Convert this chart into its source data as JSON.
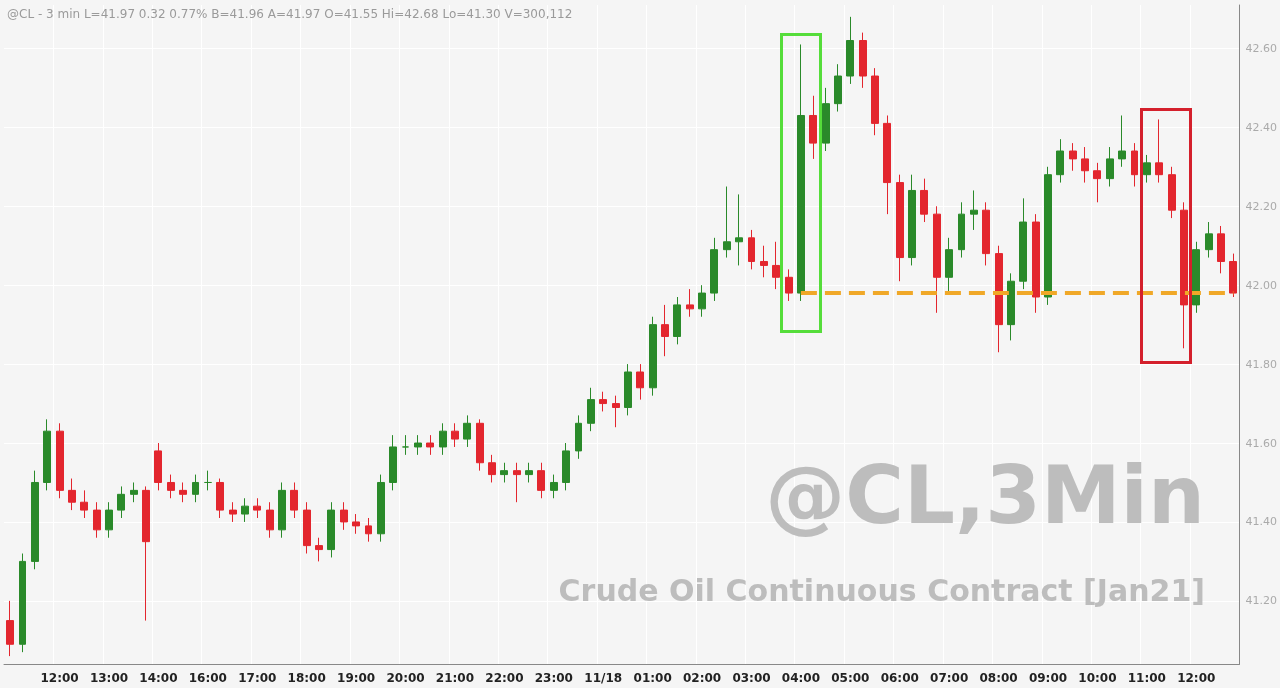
{
  "chart_data": {
    "type": "candlestick",
    "title": "@CL,3Min",
    "subtitle": "Crude Oil Continuous Contract [Jan21]",
    "annotations": [
      "@CL - 3 min L=41.97 0.32 0.77% B=41.96 A=41.97 O=41.55 Hi=42.68 Lo=41.30 V=300,112"
    ],
    "categories": [
      null,
      null,
      null,
      null,
      "12:00",
      null,
      null,
      null,
      "13:00",
      null,
      null,
      null,
      "14:00",
      null,
      null,
      null,
      "16:00",
      null,
      null,
      null,
      "17:00",
      null,
      null,
      null,
      "18:00",
      null,
      null,
      null,
      "19:00",
      null,
      null,
      null,
      "20:00",
      null,
      null,
      null,
      "21:00",
      null,
      null,
      null,
      "22:00",
      null,
      null,
      null,
      "23:00",
      null,
      null,
      null,
      "11/18",
      null,
      null,
      null,
      "01:00",
      null,
      null,
      null,
      "02:00",
      null,
      null,
      null,
      "03:00",
      null,
      null,
      null,
      "04:00",
      null,
      null,
      null,
      "05:00",
      null,
      null,
      null,
      "06:00",
      null,
      null,
      null,
      "07:00",
      null,
      null,
      null,
      "08:00",
      null,
      null,
      null,
      "09:00",
      null,
      null,
      null,
      "10:00",
      null,
      null,
      null,
      "11:00",
      null,
      null,
      null,
      "12:00",
      null,
      null,
      null
    ],
    "ohlc": [
      [
        41.15,
        41.2,
        41.06,
        41.09
      ],
      [
        41.09,
        41.32,
        41.07,
        41.3
      ],
      [
        41.3,
        41.53,
        41.28,
        41.5
      ],
      [
        41.5,
        41.66,
        41.48,
        41.63
      ],
      [
        41.63,
        41.65,
        41.46,
        41.48
      ],
      [
        41.48,
        41.51,
        41.43,
        41.45
      ],
      [
        41.45,
        41.48,
        41.41,
        41.43
      ],
      [
        41.43,
        41.45,
        41.36,
        41.38
      ],
      [
        41.38,
        41.45,
        41.36,
        41.43
      ],
      [
        41.43,
        41.49,
        41.41,
        41.47
      ],
      [
        41.47,
        41.5,
        41.45,
        41.48
      ],
      [
        41.48,
        41.49,
        41.15,
        41.35
      ],
      [
        41.58,
        41.6,
        41.48,
        41.5
      ],
      [
        41.5,
        41.52,
        41.46,
        41.48
      ],
      [
        41.48,
        41.5,
        41.45,
        41.47
      ],
      [
        41.47,
        41.52,
        41.45,
        41.5
      ],
      [
        41.5,
        41.53,
        41.48,
        41.5
      ],
      [
        41.5,
        41.51,
        41.41,
        41.43
      ],
      [
        41.43,
        41.45,
        41.4,
        41.42
      ],
      [
        41.42,
        41.46,
        41.4,
        41.44
      ],
      [
        41.44,
        41.46,
        41.41,
        41.43
      ],
      [
        41.43,
        41.45,
        41.36,
        41.38
      ],
      [
        41.38,
        41.5,
        41.36,
        41.48
      ],
      [
        41.48,
        41.5,
        41.41,
        41.43
      ],
      [
        41.43,
        41.45,
        41.32,
        41.34
      ],
      [
        41.34,
        41.36,
        41.3,
        41.33
      ],
      [
        41.33,
        41.45,
        41.31,
        41.43
      ],
      [
        41.43,
        41.45,
        41.38,
        41.4
      ],
      [
        41.4,
        41.42,
        41.37,
        41.39
      ],
      [
        41.39,
        41.41,
        41.35,
        41.37
      ],
      [
        41.37,
        41.52,
        41.35,
        41.5
      ],
      [
        41.5,
        41.62,
        41.48,
        41.59
      ],
      [
        41.59,
        41.62,
        41.57,
        41.59
      ],
      [
        41.59,
        41.62,
        41.57,
        41.6
      ],
      [
        41.6,
        41.62,
        41.57,
        41.59
      ],
      [
        41.59,
        41.65,
        41.57,
        41.63
      ],
      [
        41.63,
        41.65,
        41.59,
        41.61
      ],
      [
        41.61,
        41.67,
        41.59,
        41.65
      ],
      [
        41.65,
        41.66,
        41.53,
        41.55
      ],
      [
        41.55,
        41.57,
        41.5,
        41.52
      ],
      [
        41.52,
        41.55,
        41.5,
        41.53
      ],
      [
        41.53,
        41.55,
        41.45,
        41.52
      ],
      [
        41.52,
        41.55,
        41.5,
        41.53
      ],
      [
        41.53,
        41.55,
        41.46,
        41.48
      ],
      [
        41.48,
        41.52,
        41.46,
        41.5
      ],
      [
        41.5,
        41.6,
        41.48,
        41.58
      ],
      [
        41.58,
        41.67,
        41.56,
        41.65
      ],
      [
        41.65,
        41.74,
        41.63,
        41.71
      ],
      [
        41.71,
        41.73,
        41.68,
        41.7
      ],
      [
        41.7,
        41.72,
        41.64,
        41.69
      ],
      [
        41.69,
        41.8,
        41.67,
        41.78
      ],
      [
        41.78,
        41.8,
        41.71,
        41.74
      ],
      [
        41.74,
        41.92,
        41.72,
        41.9
      ],
      [
        41.9,
        41.95,
        41.82,
        41.87
      ],
      [
        41.87,
        41.97,
        41.85,
        41.95
      ],
      [
        41.95,
        41.99,
        41.92,
        41.94
      ],
      [
        41.94,
        42.0,
        41.92,
        41.98
      ],
      [
        41.98,
        42.12,
        41.96,
        42.09
      ],
      [
        42.09,
        42.25,
        42.07,
        42.11
      ],
      [
        42.11,
        42.23,
        42.05,
        42.12
      ],
      [
        42.12,
        42.14,
        42.04,
        42.06
      ],
      [
        42.06,
        42.1,
        42.02,
        42.05
      ],
      [
        42.05,
        42.11,
        41.99,
        42.02
      ],
      [
        42.02,
        42.04,
        41.96,
        41.98
      ],
      [
        41.98,
        42.61,
        41.96,
        42.43
      ],
      [
        42.43,
        42.48,
        42.32,
        42.36
      ],
      [
        42.36,
        42.5,
        42.34,
        42.46
      ],
      [
        42.46,
        42.56,
        42.44,
        42.53
      ],
      [
        42.53,
        42.68,
        42.51,
        42.62
      ],
      [
        42.62,
        42.64,
        42.5,
        42.53
      ],
      [
        42.53,
        42.55,
        42.38,
        42.41
      ],
      [
        42.41,
        42.43,
        42.18,
        42.26
      ],
      [
        42.26,
        42.28,
        42.01,
        42.07
      ],
      [
        42.07,
        42.28,
        42.05,
        42.24
      ],
      [
        42.24,
        42.27,
        42.16,
        42.18
      ],
      [
        42.18,
        42.2,
        41.93,
        42.02
      ],
      [
        42.02,
        42.12,
        41.98,
        42.09
      ],
      [
        42.09,
        42.21,
        42.07,
        42.18
      ],
      [
        42.18,
        42.24,
        42.14,
        42.19
      ],
      [
        42.19,
        42.21,
        42.05,
        42.08
      ],
      [
        42.08,
        42.1,
        41.83,
        41.9
      ],
      [
        41.9,
        42.03,
        41.86,
        42.01
      ],
      [
        42.01,
        42.22,
        41.99,
        42.16
      ],
      [
        42.16,
        42.18,
        41.93,
        41.97
      ],
      [
        41.97,
        42.3,
        41.95,
        42.28
      ],
      [
        42.28,
        42.37,
        42.26,
        42.34
      ],
      [
        42.34,
        42.36,
        42.29,
        42.32
      ],
      [
        42.32,
        42.35,
        42.26,
        42.29
      ],
      [
        42.29,
        42.31,
        42.21,
        42.27
      ],
      [
        42.27,
        42.35,
        42.25,
        42.32
      ],
      [
        42.32,
        42.43,
        42.3,
        42.34
      ],
      [
        42.34,
        42.36,
        42.25,
        42.28
      ],
      [
        42.28,
        42.33,
        42.26,
        42.31
      ],
      [
        42.31,
        42.42,
        42.26,
        42.28
      ],
      [
        42.28,
        42.3,
        42.17,
        42.19
      ],
      [
        42.19,
        42.21,
        41.84,
        41.95
      ],
      [
        41.95,
        42.11,
        41.93,
        42.09
      ],
      [
        42.09,
        42.16,
        42.07,
        42.13
      ],
      [
        42.13,
        42.15,
        42.03,
        42.06
      ],
      [
        42.06,
        42.08,
        41.97,
        41.98
      ]
    ],
    "colors": [
      "#e3262e",
      "#2a8a2a",
      "#2a8a2a",
      "#2a8a2a",
      "#e3262e",
      "#e3262e",
      "#e3262e",
      "#e3262e",
      "#2a8a2a",
      "#2a8a2a",
      "#2a8a2a",
      "#e3262e",
      "#e3262e",
      "#e3262e",
      "#e3262e",
      "#2a8a2a",
      "#2a8a2a",
      "#e3262e",
      "#e3262e",
      "#2a8a2a",
      "#e3262e",
      "#e3262e",
      "#2a8a2a",
      "#e3262e",
      "#e3262e",
      "#e3262e",
      "#2a8a2a",
      "#e3262e",
      "#e3262e",
      "#e3262e",
      "#2a8a2a",
      "#2a8a2a",
      "#2a8a2a",
      "#2a8a2a",
      "#e3262e",
      "#2a8a2a",
      "#e3262e",
      "#2a8a2a",
      "#e3262e",
      "#e3262e",
      "#2a8a2a",
      "#e3262e",
      "#2a8a2a",
      "#e3262e",
      "#2a8a2a",
      "#2a8a2a",
      "#2a8a2a",
      "#2a8a2a",
      "#e3262e",
      "#e3262e",
      "#2a8a2a",
      "#e3262e",
      "#2a8a2a",
      "#e3262e",
      "#2a8a2a",
      "#e3262e",
      "#2a8a2a",
      "#2a8a2a",
      "#2a8a2a",
      "#2a8a2a",
      "#e3262e",
      "#e3262e",
      "#e3262e",
      "#e3262e",
      "#2a8a2a",
      "#e3262e",
      "#2a8a2a",
      "#2a8a2a",
      "#2a8a2a",
      "#e3262e",
      "#e3262e",
      "#e3262e",
      "#e3262e",
      "#2a8a2a",
      "#e3262e",
      "#e3262e",
      "#2a8a2a",
      "#2a8a2a",
      "#2a8a2a",
      "#e3262e",
      "#e3262e",
      "#2a8a2a",
      "#2a8a2a",
      "#e3262e",
      "#2a8a2a",
      "#2a8a2a",
      "#e3262e",
      "#e3262e",
      "#e3262e",
      "#2a8a2a",
      "#2a8a2a",
      "#e3262e",
      "#2a8a2a",
      "#e3262e",
      "#e3262e",
      "#e3262e",
      "#2a8a2a",
      "#2a8a2a",
      "#e3262e",
      "#e3262e"
    ],
    "ylim": [
      41.04,
      42.71
    ],
    "yticks": [
      {
        "value": 41.2,
        "label": "41.20"
      },
      {
        "value": 41.4,
        "label": "41.40"
      },
      {
        "value": 41.6,
        "label": "41.60"
      },
      {
        "value": 41.8,
        "label": "41.80"
      },
      {
        "value": 42.0,
        "label": "42.00"
      },
      {
        "value": 42.2,
        "label": "42.20"
      },
      {
        "value": 42.4,
        "label": "42.40"
      },
      {
        "value": 42.6,
        "label": "42.60"
      }
    ],
    "grid": true,
    "ref_lines": [
      {
        "axis": "y",
        "value": 41.98,
        "color": "#f0a828",
        "line_style": "dashed"
      }
    ]
  }
}
